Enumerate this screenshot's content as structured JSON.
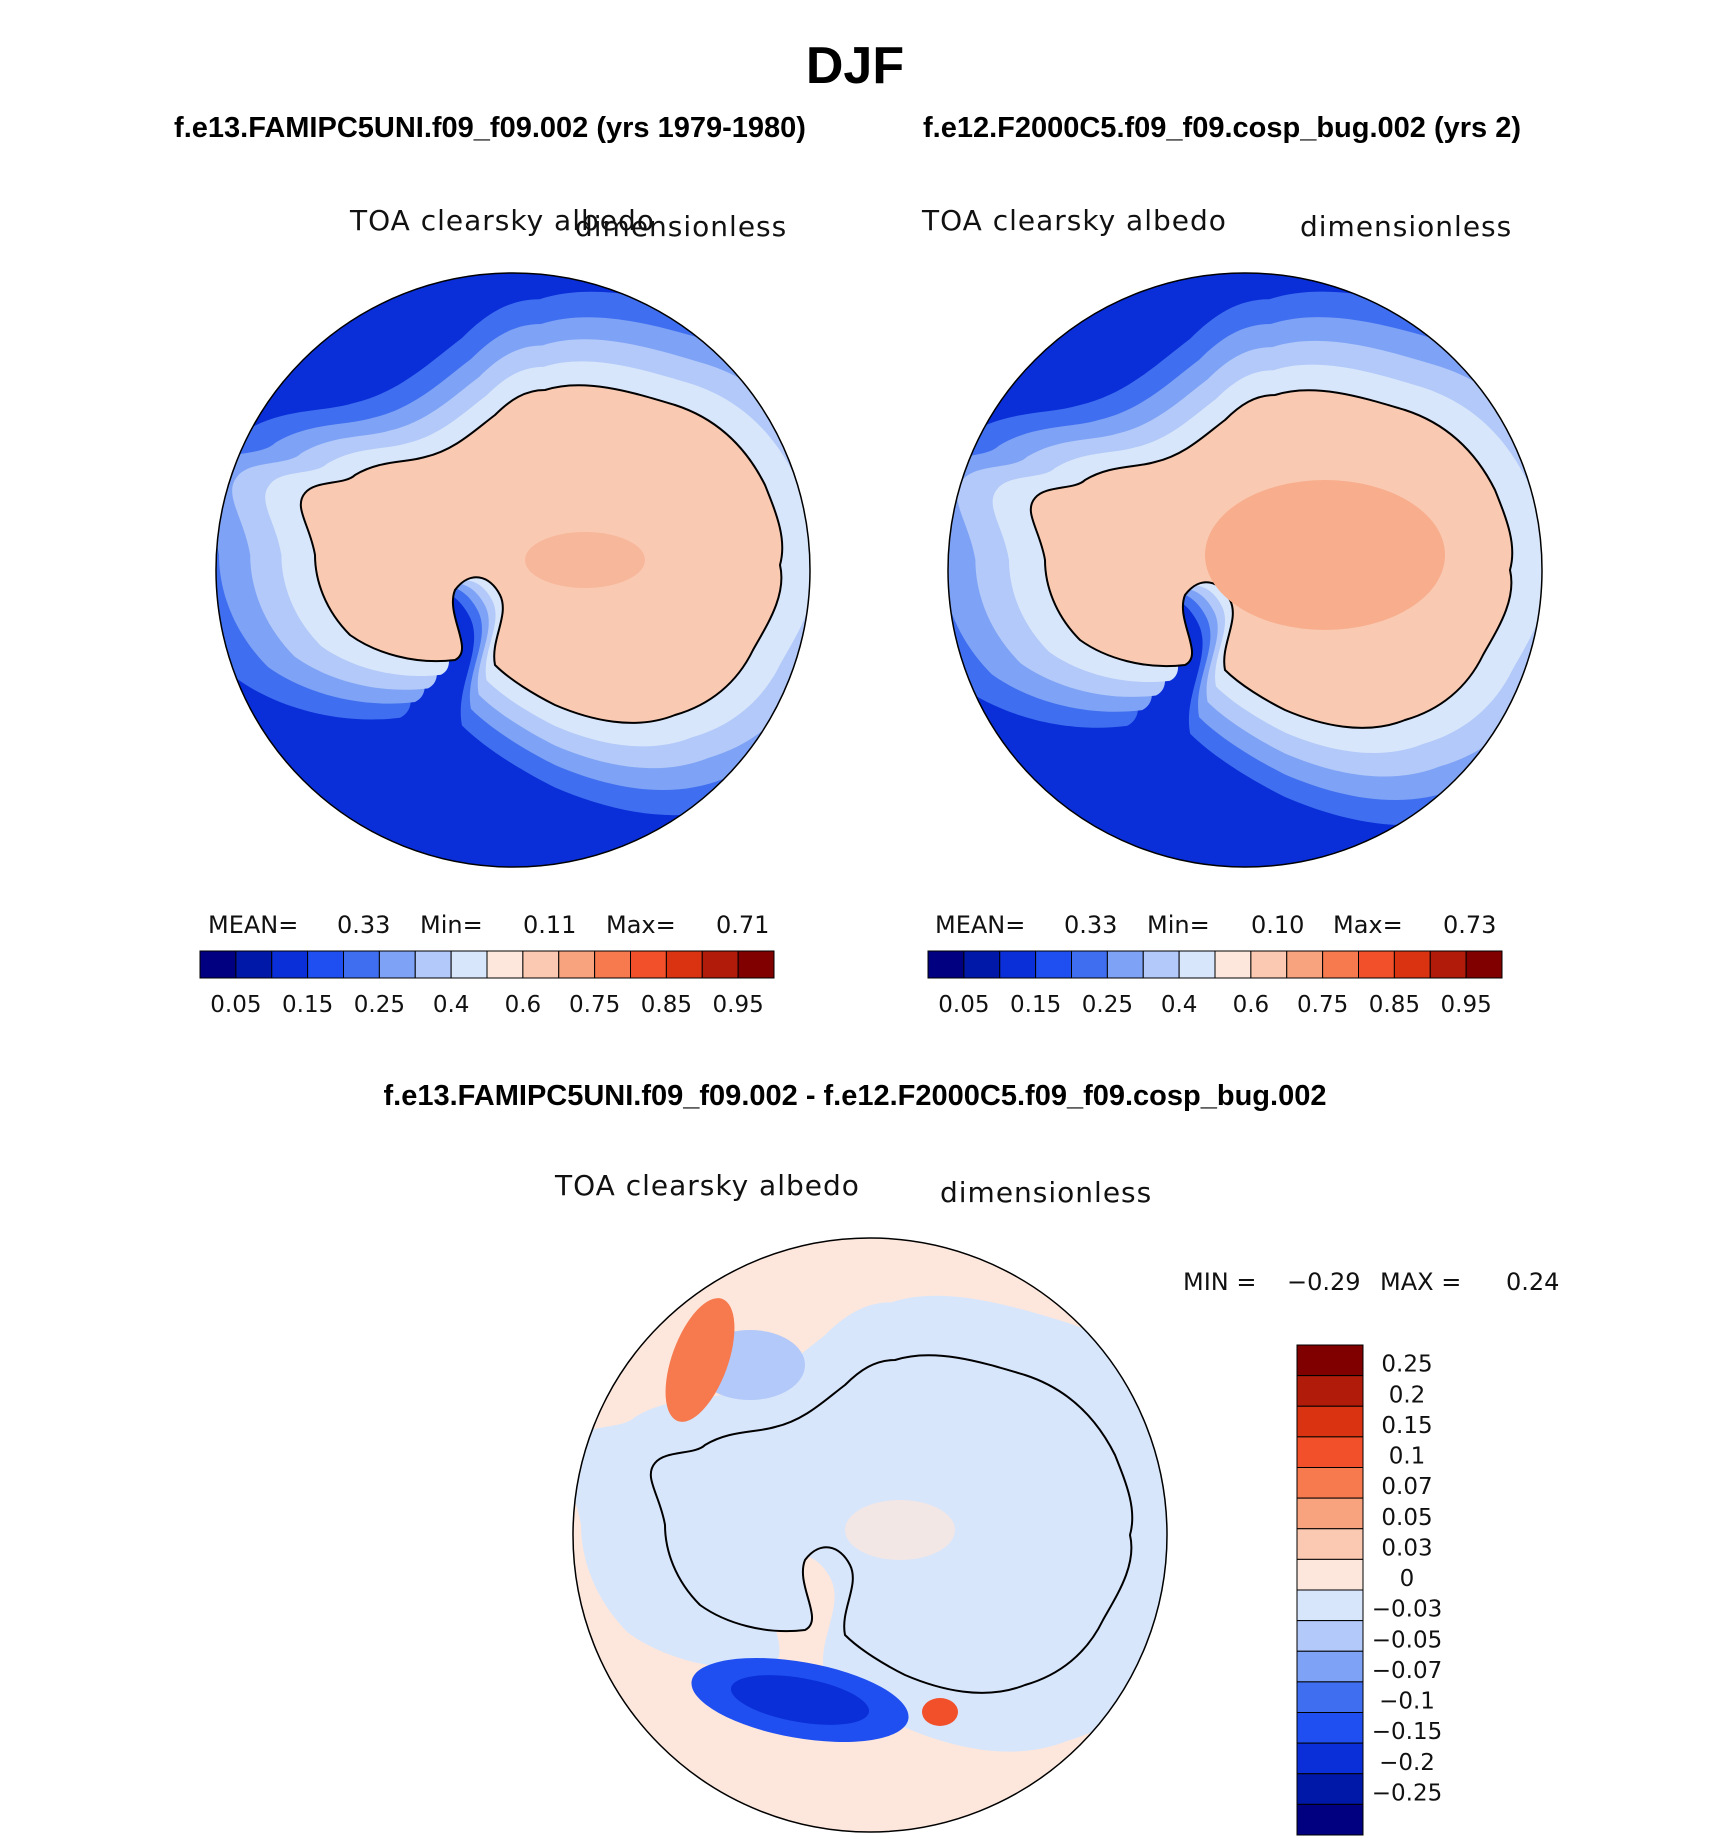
{
  "figure": {
    "main_title": "DJF",
    "top_subtitle_left": "f.e13.FAMIPC5UNI.f09_f09.002 (yrs 1979-1980)",
    "top_subtitle_right": "f.e12.F2000C5.f09_f09.cosp_bug.002 (yrs 2)",
    "diff_title": "f.e13.FAMIPC5UNI.f09_f09.002 - f.e12.F2000C5.f09_f09.cosp_bug.002"
  },
  "chart_data": [
    {
      "type": "heatmap",
      "projection": "south-polar-stereographic",
      "variable": "TOA clearsky albedo",
      "units": "dimensionless",
      "stats": {
        "mean_label": "MEAN=",
        "mean": "0.33",
        "min_label": "Min=",
        "min": "0.11",
        "max_label": "Max=",
        "max": "0.71"
      },
      "levels": [
        "0.05",
        "0.15",
        "0.25",
        "0.4",
        "0.6",
        "0.75",
        "0.85",
        "0.95"
      ],
      "colors": [
        "#000080",
        "#0018a8",
        "#0a2fd8",
        "#1f4ff0",
        "#3f6ff0",
        "#7ea2f5",
        "#b2c9f9",
        "#d8e6fb",
        "#fde7dc",
        "#fbc8b1",
        "#f9a27e",
        "#f67a4e",
        "#f2502a",
        "#d93312",
        "#b01b0a",
        "#800000"
      ],
      "land_value_color": "#f9c9b2",
      "ocean_value_color": "#0a2fd8"
    },
    {
      "type": "heatmap",
      "projection": "south-polar-stereographic",
      "variable": "TOA clearsky albedo",
      "units": "dimensionless",
      "stats": {
        "mean_label": "MEAN=",
        "mean": "0.33",
        "min_label": "Min=",
        "min": "0.10",
        "max_label": "Max=",
        "max": "0.73"
      },
      "levels": [
        "0.05",
        "0.15",
        "0.25",
        "0.4",
        "0.6",
        "0.75",
        "0.85",
        "0.95"
      ],
      "colors": [
        "#000080",
        "#0018a8",
        "#0a2fd8",
        "#1f4ff0",
        "#3f6ff0",
        "#7ea2f5",
        "#b2c9f9",
        "#d8e6fb",
        "#fde7dc",
        "#fbc8b1",
        "#f9a27e",
        "#f67a4e",
        "#f2502a",
        "#d93312",
        "#b01b0a",
        "#800000"
      ],
      "land_value_color": "#f9b99c",
      "ocean_value_color": "#0a2fd8"
    },
    {
      "type": "heatmap",
      "projection": "south-polar-stereographic",
      "variable": "TOA clearsky albedo",
      "units": "dimensionless",
      "stats": {
        "min_label": "MIN =",
        "min": "−0.29",
        "max_label": "MAX =",
        "max": "0.24"
      },
      "levels": [
        "0.25",
        "0.2",
        "0.15",
        "0.1",
        "0.07",
        "0.05",
        "0.03",
        "0",
        "−0.03",
        "−0.05",
        "−0.07",
        "−0.1",
        "−0.15",
        "−0.2",
        "−0.25"
      ],
      "colors_top_to_bottom": [
        "#800000",
        "#b01b0a",
        "#d93312",
        "#f2502a",
        "#f67a4e",
        "#f9a27e",
        "#fbc8b1",
        "#fde7dc",
        "#d8e6fb",
        "#b2c9f9",
        "#7ea2f5",
        "#3f6ff0",
        "#1f4ff0",
        "#0a2fd8",
        "#0018a8",
        "#000080"
      ]
    }
  ]
}
